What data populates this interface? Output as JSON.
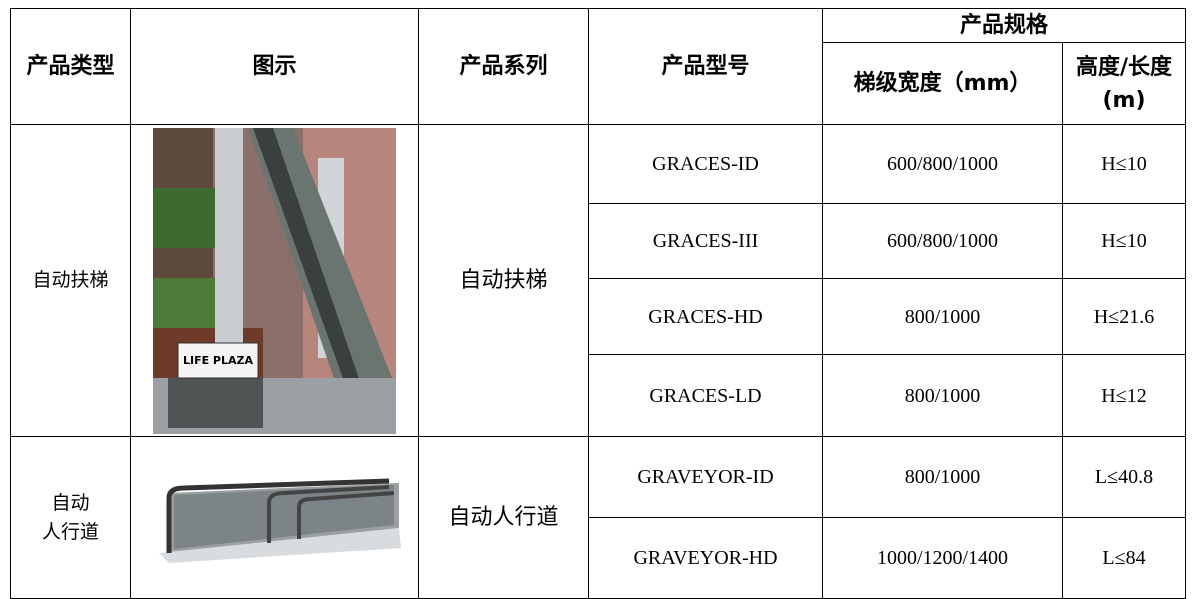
{
  "table": {
    "header": {
      "type": "产品类型",
      "image": "图示",
      "series": "产品系列",
      "model": "产品型号",
      "spec": "产品规格",
      "width": "梯级宽度（mm）",
      "height": [
        "高度/长度",
        "(m)"
      ]
    },
    "groups": [
      {
        "type": [
          "自动扶梯"
        ],
        "series": "自动扶梯",
        "sign": "LIFE PLAZA",
        "rows": [
          [
            "GRACES-ID",
            "600/800/1000",
            "H≤10"
          ],
          [
            "GRACES-III",
            "600/800/1000",
            "H≤10"
          ],
          [
            "GRACES-HD",
            "800/1000",
            "H≤21.6"
          ],
          [
            "GRACES-LD",
            "800/1000",
            "H≤12"
          ]
        ]
      },
      {
        "type": [
          "自动",
          "人行道"
        ],
        "series": "自动人行道",
        "rows": [
          [
            "GRAVEYOR-ID",
            "800/1000",
            "L≤40.8"
          ],
          [
            "GRAVEYOR-HD",
            "1000/1200/1400",
            "L≤84"
          ]
        ]
      }
    ]
  }
}
